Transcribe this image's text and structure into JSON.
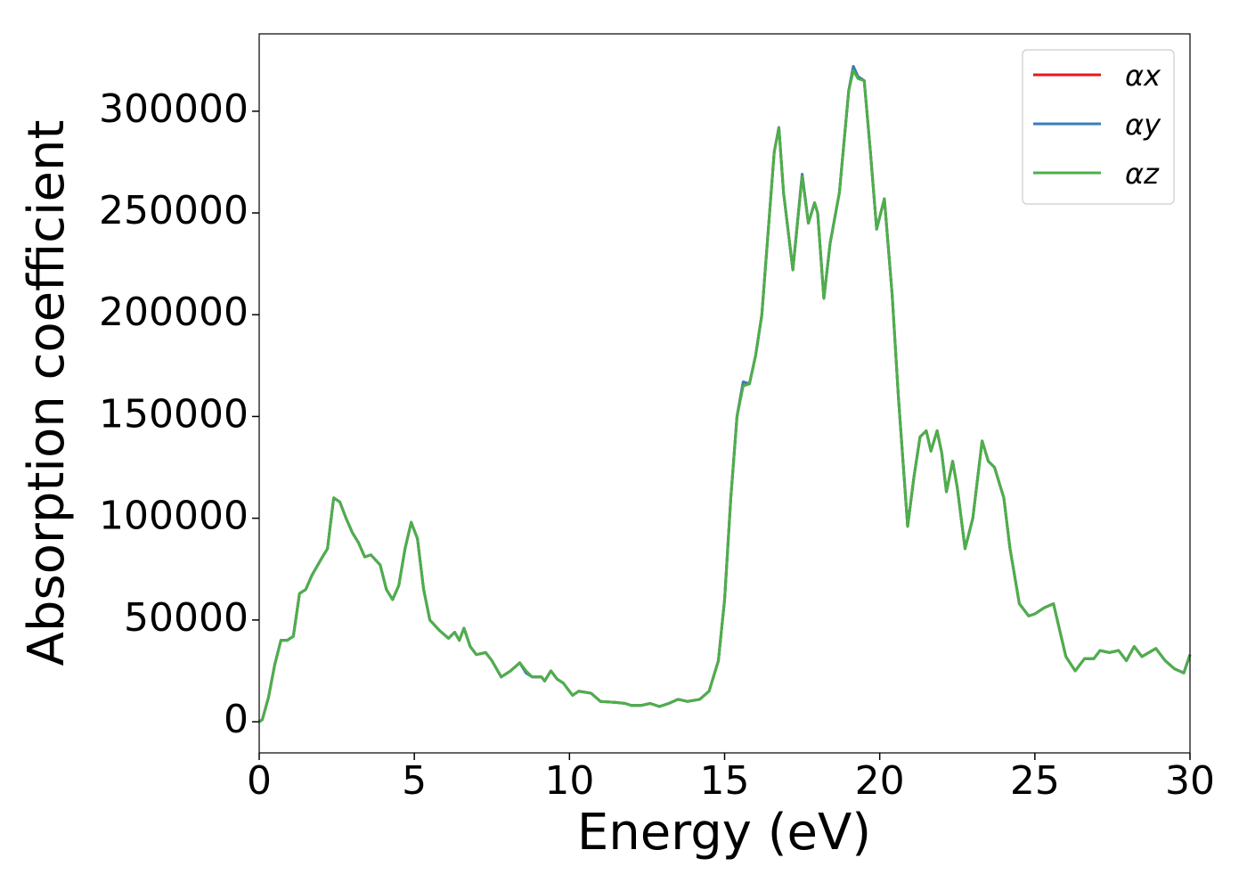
{
  "chart_data": {
    "type": "line",
    "xlabel": "Energy (eV)",
    "ylabel": "Absorption coefficient",
    "x": [
      0,
      0.1,
      0.3,
      0.5,
      0.7,
      0.9,
      1.1,
      1.3,
      1.5,
      1.7,
      2.0,
      2.2,
      2.4,
      2.6,
      2.8,
      3.0,
      3.2,
      3.4,
      3.6,
      3.9,
      4.1,
      4.3,
      4.5,
      4.7,
      4.9,
      5.1,
      5.3,
      5.5,
      5.8,
      6.1,
      6.3,
      6.45,
      6.6,
      6.8,
      7.0,
      7.3,
      7.5,
      7.8,
      8.1,
      8.4,
      8.6,
      8.8,
      9.1,
      9.2,
      9.4,
      9.6,
      9.8,
      10.1,
      10.3,
      10.7,
      11.0,
      11.5,
      11.8,
      12.0,
      12.3,
      12.6,
      12.9,
      13.2,
      13.5,
      13.8,
      14.2,
      14.5,
      14.8,
      15.0,
      15.2,
      15.4,
      15.6,
      15.8,
      16.0,
      16.2,
      16.4,
      16.6,
      16.75,
      16.9,
      17.2,
      17.5,
      17.7,
      17.9,
      18.0,
      18.2,
      18.4,
      18.7,
      19.0,
      19.15,
      19.3,
      19.5,
      19.7,
      19.9,
      20.15,
      20.4,
      20.6,
      20.9,
      21.1,
      21.3,
      21.5,
      21.65,
      21.85,
      22.0,
      22.15,
      22.35,
      22.5,
      22.75,
      23.0,
      23.3,
      23.5,
      23.7,
      24.0,
      24.2,
      24.5,
      24.8,
      25.0,
      25.3,
      25.6,
      25.8,
      26.0,
      26.3,
      26.6,
      26.9,
      27.1,
      27.4,
      27.7,
      27.95,
      28.2,
      28.45,
      28.9,
      29.2,
      29.5,
      29.8,
      30.0
    ],
    "series": [
      {
        "name": "αx",
        "color": "#e41a1c",
        "values": [
          0,
          1000,
          12000,
          28000,
          40000,
          40000,
          42000,
          63000,
          65000,
          72000,
          80000,
          85000,
          110000,
          108000,
          100000,
          93000,
          88000,
          81000,
          82000,
          77000,
          65000,
          60000,
          67000,
          85000,
          98000,
          90000,
          65000,
          50000,
          45000,
          41000,
          44000,
          40000,
          46000,
          37000,
          33000,
          34000,
          30000,
          22000,
          25000,
          29000,
          24000,
          22000,
          22000,
          20000,
          25000,
          21000,
          19000,
          13000,
          15000,
          14000,
          10000,
          9500,
          9000,
          8000,
          8000,
          9000,
          7500,
          9000,
          11000,
          10000,
          11000,
          15000,
          30000,
          60000,
          110000,
          150000,
          167000,
          166000,
          180000,
          200000,
          240000,
          280000,
          292000,
          260000,
          222000,
          269000,
          245000,
          255000,
          250000,
          208000,
          235000,
          260000,
          310000,
          322000,
          317000,
          315000,
          280000,
          242000,
          257000,
          210000,
          160000,
          96000,
          120000,
          140000,
          143000,
          133000,
          143000,
          132000,
          113000,
          128000,
          115000,
          85000,
          100000,
          138000,
          128000,
          125000,
          110000,
          85000,
          58000,
          52000,
          53000,
          56000,
          58000,
          45000,
          32000,
          25000,
          31000,
          31000,
          35000,
          34000,
          35000,
          30000,
          37000,
          32000,
          36000,
          30000,
          26000,
          24000,
          33000
        ]
      },
      {
        "name": "αy",
        "color": "#377eb8",
        "values": [
          0,
          1000,
          12000,
          28000,
          40000,
          40000,
          42000,
          63000,
          65000,
          72000,
          80000,
          85000,
          110000,
          108000,
          100000,
          93000,
          88000,
          81000,
          82000,
          77000,
          65000,
          60000,
          67000,
          85000,
          98000,
          90000,
          65000,
          50000,
          45000,
          41000,
          44000,
          40000,
          46000,
          37000,
          33000,
          34000,
          30000,
          22000,
          25000,
          29000,
          24000,
          22000,
          22000,
          20000,
          25000,
          21000,
          19000,
          13000,
          15000,
          14000,
          10000,
          9500,
          9000,
          8000,
          8000,
          9000,
          7500,
          9000,
          11000,
          10000,
          11000,
          15000,
          30000,
          60000,
          110000,
          150000,
          167000,
          166000,
          180000,
          200000,
          240000,
          280000,
          292000,
          260000,
          222000,
          269000,
          245000,
          255000,
          250000,
          208000,
          235000,
          260000,
          310000,
          322000,
          317000,
          315000,
          280000,
          242000,
          257000,
          210000,
          160000,
          96000,
          120000,
          140000,
          143000,
          133000,
          143000,
          132000,
          113000,
          128000,
          115000,
          85000,
          100000,
          138000,
          128000,
          125000,
          110000,
          85000,
          58000,
          52000,
          53000,
          56000,
          58000,
          45000,
          32000,
          25000,
          31000,
          31000,
          35000,
          34000,
          35000,
          30000,
          37000,
          32000,
          36000,
          30000,
          26000,
          24000,
          33000
        ]
      },
      {
        "name": "αz",
        "color": "#4daf4a",
        "values": [
          0,
          1000,
          12000,
          28000,
          40000,
          40000,
          42000,
          63000,
          65000,
          72000,
          80000,
          85000,
          110000,
          108000,
          100000,
          93000,
          88000,
          81000,
          82000,
          77000,
          65000,
          60000,
          67000,
          85000,
          98000,
          90000,
          65000,
          50000,
          45000,
          41000,
          44000,
          40000,
          46000,
          37000,
          33000,
          34000,
          30000,
          22000,
          25000,
          29000,
          25000,
          22000,
          22000,
          20000,
          25000,
          21000,
          19000,
          13000,
          15000,
          14000,
          10000,
          9500,
          9000,
          8000,
          8000,
          9000,
          7500,
          9000,
          11000,
          10000,
          11000,
          15000,
          30000,
          60000,
          110000,
          150000,
          165000,
          166000,
          180000,
          200000,
          240000,
          280000,
          292000,
          260000,
          222000,
          268000,
          245000,
          255000,
          250000,
          208000,
          235000,
          260000,
          310000,
          320000,
          316000,
          315000,
          280000,
          242000,
          257000,
          210000,
          160000,
          96000,
          120000,
          140000,
          143000,
          133000,
          143000,
          132000,
          113000,
          128000,
          115000,
          85000,
          100000,
          138000,
          128000,
          125000,
          110000,
          85000,
          58000,
          52000,
          53000,
          56000,
          58000,
          45000,
          32000,
          25000,
          31000,
          31000,
          35000,
          34000,
          35000,
          30000,
          37000,
          32000,
          36000,
          30000,
          26000,
          24000,
          33000
        ]
      }
    ],
    "xlim": [
      0,
      30
    ],
    "xticks": [
      0,
      5,
      10,
      15,
      20,
      25,
      30
    ],
    "ylim": [
      -15300,
      338000
    ],
    "yticks": [
      0,
      50000,
      100000,
      150000,
      200000,
      250000,
      300000
    ],
    "grid": false,
    "legend": "upper right"
  }
}
